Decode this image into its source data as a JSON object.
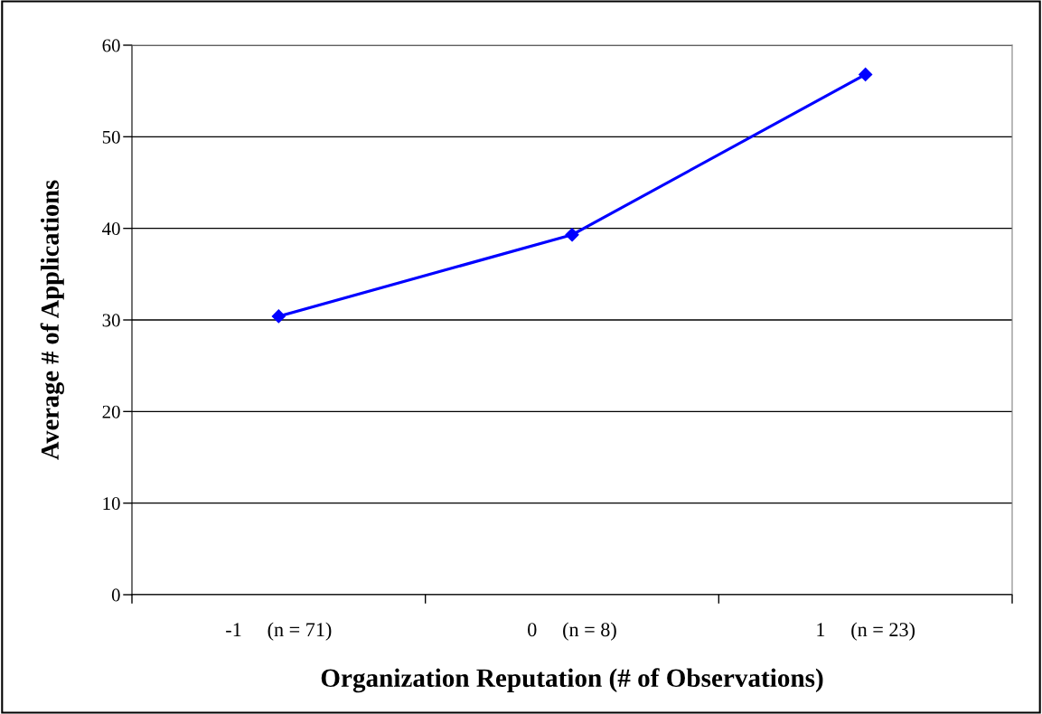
{
  "chart_data": {
    "type": "line",
    "xlabel": "Organization Reputation (# of Observations)",
    "ylabel": "Average # of Applications",
    "categories": [
      "-1     (n = 71)",
      "0     (n = 8)",
      "1     (n = 23)"
    ],
    "series": [
      {
        "color": "#0000ff",
        "values": [
          30.4,
          39.3,
          56.8
        ]
      }
    ],
    "ylim": [
      0,
      60
    ],
    "yticks": [
      0,
      10,
      20,
      30,
      40,
      50,
      60
    ],
    "grid": "y",
    "marker": "diamond",
    "line_style": "solid"
  }
}
